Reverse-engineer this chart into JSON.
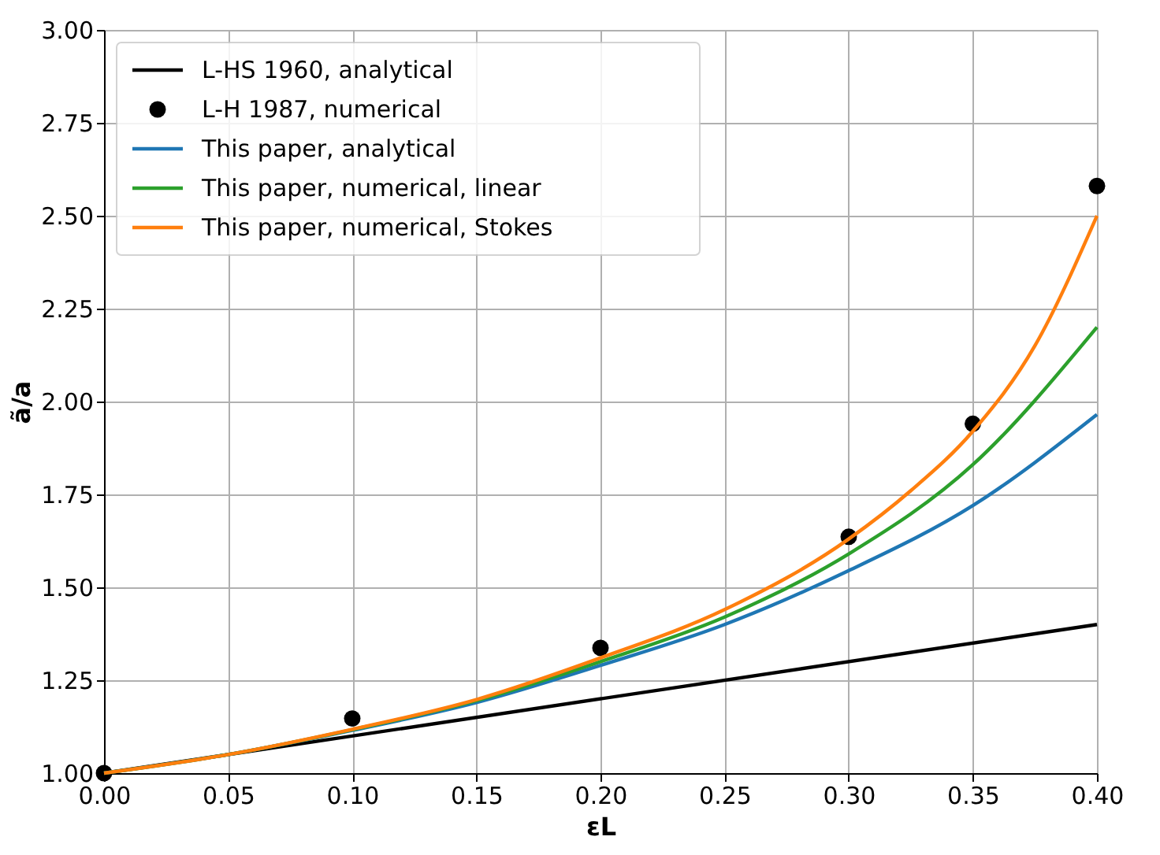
{
  "chart_data": {
    "type": "line",
    "xlabel": "εL",
    "ylabel": "ã/a",
    "xlim": [
      0,
      0.4
    ],
    "ylim": [
      1,
      3
    ],
    "xticks": [
      {
        "value": 0,
        "label": "0.00"
      },
      {
        "value": 0.05,
        "label": "0.05"
      },
      {
        "value": 0.1,
        "label": "0.10"
      },
      {
        "value": 0.15,
        "label": "0.15"
      },
      {
        "value": 0.2,
        "label": "0.20"
      },
      {
        "value": 0.25,
        "label": "0.25"
      },
      {
        "value": 0.3,
        "label": "0.30"
      },
      {
        "value": 0.35,
        "label": "0.35"
      },
      {
        "value": 0.4,
        "label": "0.40"
      }
    ],
    "yticks": [
      {
        "value": 1,
        "label": "1.00"
      },
      {
        "value": 1.25,
        "label": "1.25"
      },
      {
        "value": 1.5,
        "label": "1.50"
      },
      {
        "value": 1.75,
        "label": "1.75"
      },
      {
        "value": 2,
        "label": "2.00"
      },
      {
        "value": 2.25,
        "label": "2.25"
      },
      {
        "value": 2.5,
        "label": "2.50"
      },
      {
        "value": 2.75,
        "label": "2.75"
      },
      {
        "value": 3,
        "label": "3.00"
      }
    ],
    "grid": true,
    "legend": "top left",
    "series": [
      {
        "name": "L-HS 1960, analytical",
        "color": "#000000",
        "x": [
          0,
          0.4
        ],
        "values": [
          1.0,
          1.4
        ]
      },
      {
        "name": "L-H 1987, numerical",
        "type": "scatter",
        "marker": "circle",
        "color": "#000000",
        "x": [
          0,
          0.1,
          0.2,
          0.3,
          0.35,
          0.4
        ],
        "values": [
          1.0,
          1.147,
          1.337,
          1.636,
          1.94,
          2.58
        ]
      },
      {
        "name": "This paper, analytical",
        "color": "#1f77b4",
        "x": [
          0,
          0.05,
          0.1,
          0.15,
          0.2,
          0.25,
          0.3,
          0.35,
          0.4
        ],
        "values": [
          1.0,
          1.05,
          1.115,
          1.19,
          1.29,
          1.4,
          1.545,
          1.72,
          1.965
        ]
      },
      {
        "name": "This paper, numerical, linear",
        "color": "#2ca02c",
        "x": [
          0,
          0.05,
          0.1,
          0.15,
          0.2,
          0.25,
          0.3,
          0.35,
          0.4
        ],
        "values": [
          1.0,
          1.05,
          1.117,
          1.195,
          1.3,
          1.42,
          1.59,
          1.83,
          2.2
        ]
      },
      {
        "name": "This paper, numerical, Stokes",
        "color": "#ff7f0e",
        "x": [
          0,
          0.05,
          0.1,
          0.15,
          0.2,
          0.25,
          0.3,
          0.325,
          0.35,
          0.375,
          0.4
        ],
        "values": [
          1.0,
          1.05,
          1.118,
          1.198,
          1.31,
          1.44,
          1.63,
          1.76,
          1.92,
          2.15,
          2.5
        ]
      }
    ]
  }
}
